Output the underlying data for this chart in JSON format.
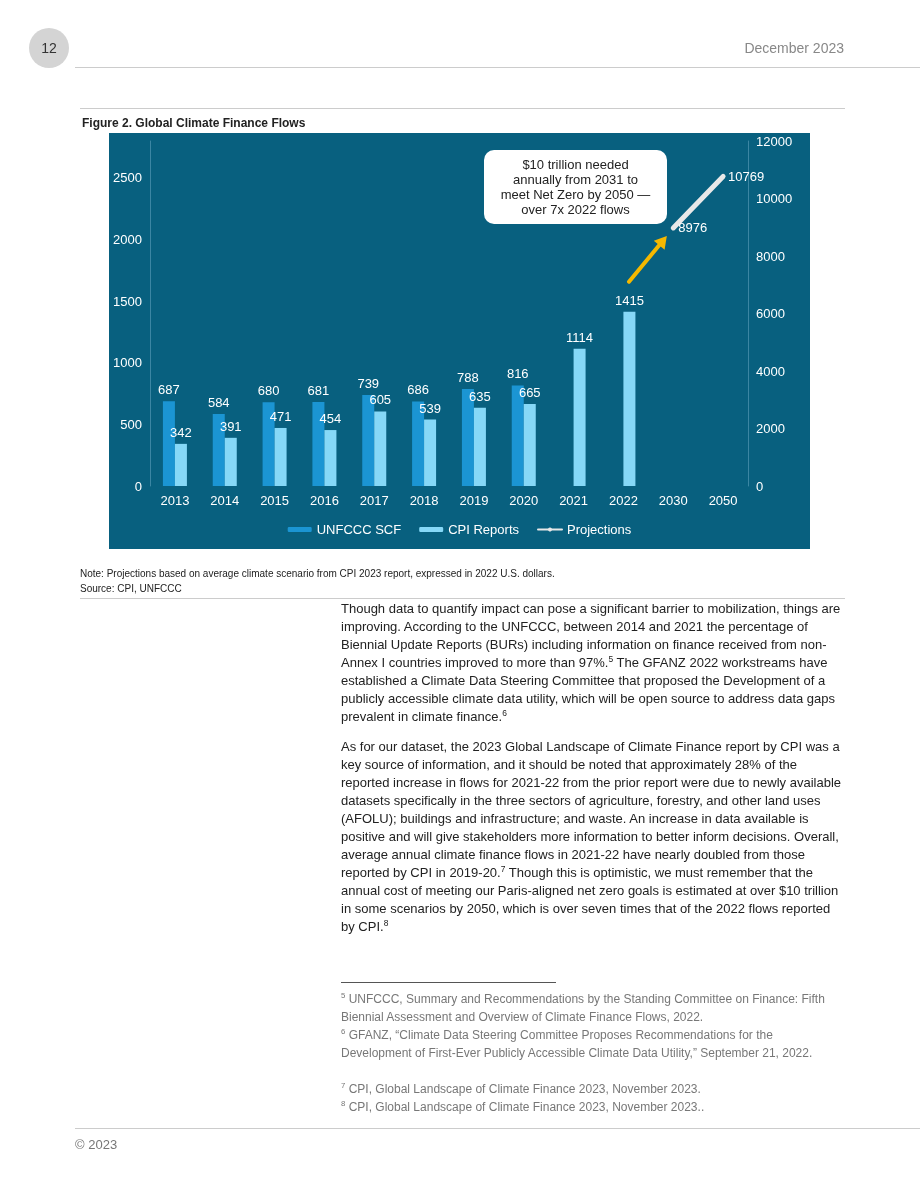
{
  "chart_data": {
    "type": "bar",
    "title": "Figure 2. Global Climate Finance Flows",
    "categories": [
      "2013",
      "2014",
      "2015",
      "2016",
      "2017",
      "2018",
      "2019",
      "2020",
      "2021",
      "2022",
      "2030",
      "2050"
    ],
    "series": [
      {
        "name": "UNFCCC SCF",
        "color": "#1b95d3",
        "values": [
          687,
          584,
          680,
          681,
          739,
          686,
          788,
          816,
          null,
          null,
          null,
          null
        ]
      },
      {
        "name": "CPI Reports",
        "color": "#86d8f7",
        "values": [
          342,
          391,
          471,
          454,
          605,
          539,
          635,
          665,
          1114,
          1415,
          null,
          null
        ]
      },
      {
        "name": "Projections",
        "type": "line",
        "axis": "y2",
        "color": "#e8e8e8",
        "marker": "none",
        "values": [
          null,
          null,
          null,
          null,
          null,
          null,
          null,
          null,
          null,
          null,
          8976,
          10769
        ]
      }
    ],
    "ylim": [
      0,
      2800
    ],
    "yticks": [
      0,
      500,
      1000,
      1500,
      2000,
      2500
    ],
    "y2lim": [
      0,
      12000
    ],
    "y2ticks": [
      0,
      2000,
      4000,
      6000,
      8000,
      10000,
      12000
    ],
    "data_labels": true,
    "grid": false,
    "legend": "bottom",
    "annotations": [
      "$10 trillion needed\nannually from 2031 to\nmeet Net Zero by 2050 —\nover 7x 2022 flows",
      "Note: Projections based on average climate scenario from CPI 2023 report, expressed in 2022 U.S. dollars.",
      "Source: CPI, UNFCCC",
      "12",
      "December 2023",
      "Though data to quantify impact can pose a significant barrier to mobilization, things are improving. According to the UNFCCC, between 2014 and 2021 the percentage of Biennial Update Reports (BURs) including information on finance received from non-Annex I countries improved to more than 97%.$^{5}$ The GFANZ 2022 workstreams have established a Climate Data Steering Committee that proposed the Development of a publicly accessible climate data utility, which will be open source to address data gaps prevalent in climate finance.$^{6}$",
      "As for our dataset, the 2023 Global Landscape of Climate Finance report by CPI was a key source of information, and it should be noted that approximately 28% of the reported increase in flows for 2021-22 from the prior report were due to newly available datasets specifically in the three sectors of agriculture, forestry, and other land uses (AFOLU); buildings and infrastructure; and waste. An increase in data available is positive and will give stakeholders more information to better inform decisions. Overall, average annual climate finance flows in 2021-22 have nearly doubled from those reported by CPI in 2019-20.$^{7}$ Though this is optimistic, we must remember that the annual cost of meeting our Paris-aligned net zero goals is estimated at over $10 trillion in some scenarios by 2050, which is over seven times that of the 2022 flows reported by CPI.$^{8}$",
      "$^{5}$ UNFCCC, Summary and Recommendations by the Standing Committee on Finance: Fifth Biennial Assessment and Overview of Climate Finance Flows, 2022.",
      "$^{6}$ GFANZ, “Climate Data Steering Committee Proposes Recommendations for the Development of First-Ever Publicly Accessible Climate Data Utility,” September 21, 2022.",
      "$^{7}$ CPI, Global Landscape of Climate Finance 2023, November 2023.",
      "$^{8}$ CPI, Global Landscape of Climate Finance 2023, November 2023..",
      "© 2023"
    ]
  }
}
